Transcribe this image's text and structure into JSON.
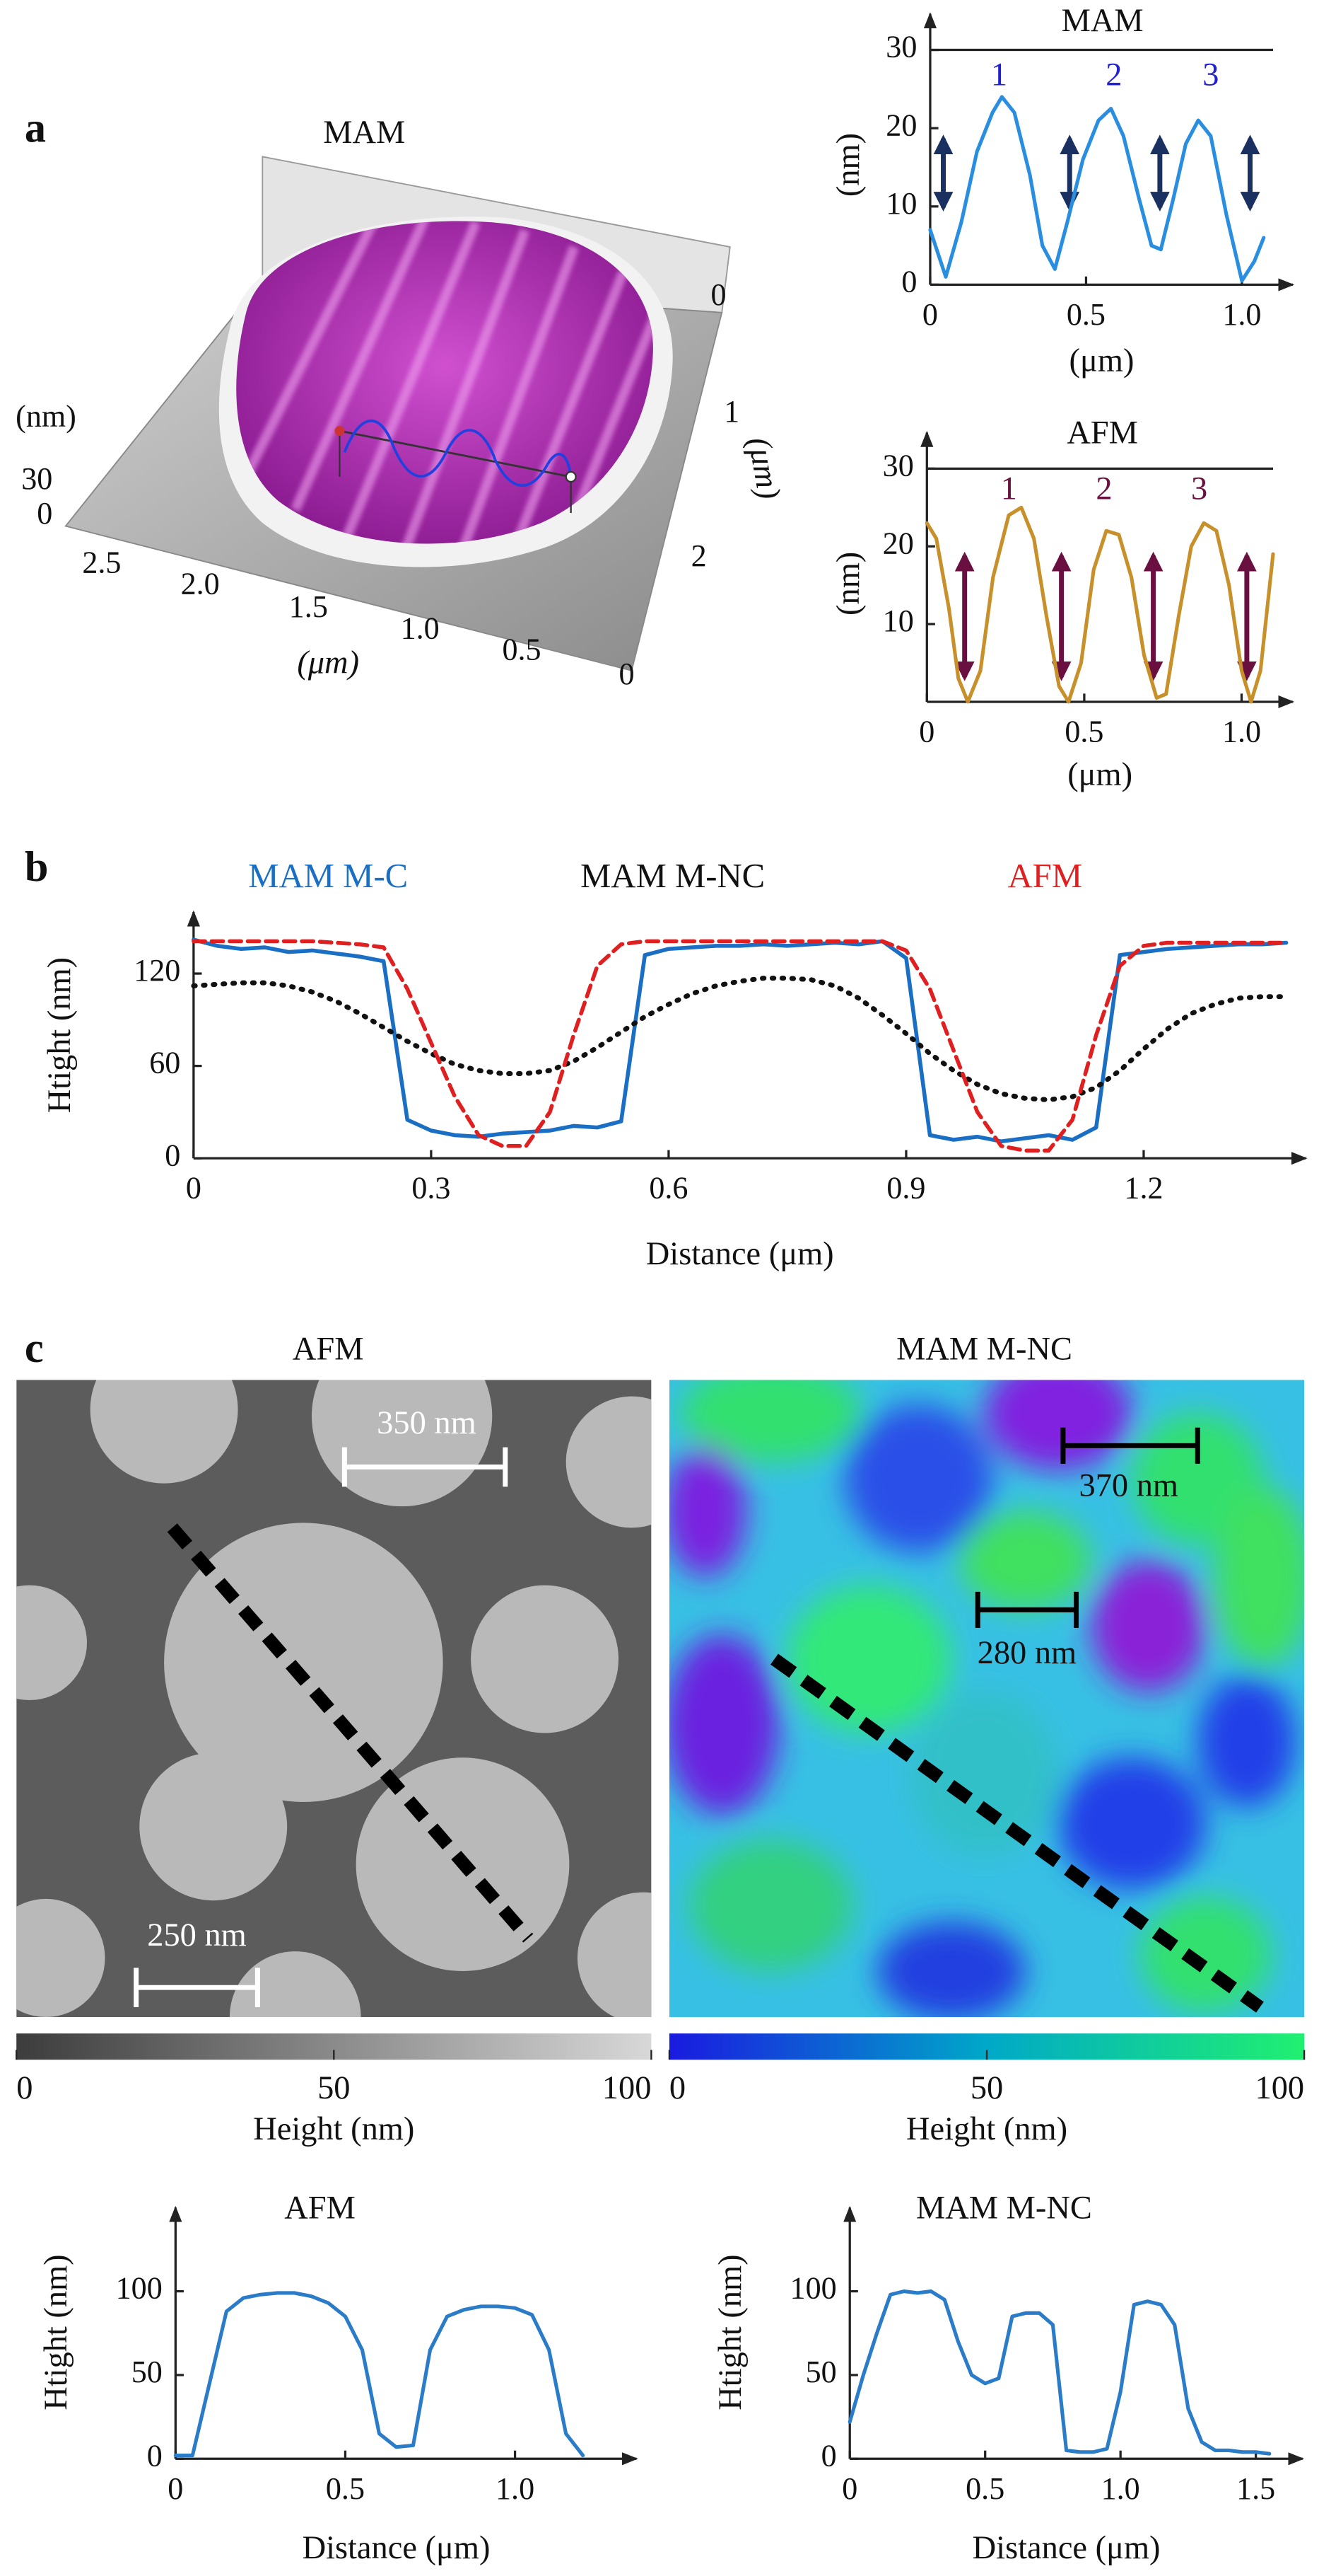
{
  "chart_data": [
    {
      "type": "surface",
      "panel": "a",
      "title": "MAM",
      "zlabel": "(nm)",
      "zticks": [
        30,
        0
      ],
      "xticks": [
        2.5,
        {
          "value": 2,
          "label": "2.0"
        },
        1.5,
        {
          "value": 1,
          "label": "1.0"
        },
        0.5,
        0
      ],
      "xlabel": "(μm)",
      "yticks": [
        0,
        1,
        2
      ],
      "ylabel": "(μm)"
    },
    {
      "type": "line",
      "title": "MAM",
      "ylabel": "(nm)",
      "xlabel": "(μm)",
      "x": [
        0,
        0.05,
        0.1,
        0.15,
        0.2,
        0.23,
        0.27,
        0.32,
        0.36,
        0.4,
        0.44,
        0.49,
        0.54,
        0.58,
        0.62,
        0.67,
        0.71,
        0.74,
        0.78,
        0.82,
        0.86,
        0.9,
        0.95,
        1.0,
        1.04,
        1.07
      ],
      "series": [
        {
          "color": "#2a8ee0",
          "values": [
            7,
            1,
            8,
            17,
            22,
            24,
            22,
            14,
            5,
            2,
            8,
            16,
            21,
            22.5,
            19,
            11,
            5,
            4.5,
            11,
            18,
            21,
            19,
            9,
            0.5,
            3,
            6
          ]
        }
      ],
      "annotations": [
        "1",
        "2",
        "3"
      ],
      "annotation_color": "#2020d0",
      "xlim": [
        0,
        1.1
      ],
      "xticks": [
        0,
        0.5,
        {
          "value": 1,
          "label": "1.0"
        }
      ],
      "ylim": [
        0,
        30
      ],
      "yticks": [
        0,
        10,
        20,
        30
      ]
    },
    {
      "type": "line",
      "title": "AFM",
      "ylabel": "(nm)",
      "xlabel": "(μm)",
      "x": [
        0,
        0.03,
        0.07,
        0.1,
        0.13,
        0.17,
        0.21,
        0.26,
        0.3,
        0.34,
        0.38,
        0.42,
        0.45,
        0.49,
        0.53,
        0.57,
        0.61,
        0.65,
        0.69,
        0.73,
        0.76,
        0.8,
        0.84,
        0.88,
        0.92,
        0.96,
        1.0,
        1.03,
        1.06,
        1.1
      ],
      "series": [
        {
          "color": "#c8902a",
          "values": [
            23,
            21,
            12,
            3,
            0,
            4,
            16,
            24,
            25,
            21,
            11,
            2,
            0,
            5,
            17,
            22,
            21.5,
            16,
            6,
            0.5,
            1,
            11,
            20,
            23,
            22,
            15,
            4,
            0,
            4,
            19
          ]
        }
      ],
      "annotations": [
        "1",
        "2",
        "3"
      ],
      "annotation_color": "#6a1040",
      "xlim": [
        0,
        1.1
      ],
      "xticks": [
        0,
        0.5,
        {
          "value": 1,
          "label": "1.0"
        }
      ],
      "ylim": [
        0,
        30
      ],
      "yticks": [
        10,
        20,
        30
      ]
    },
    {
      "type": "line",
      "panel": "b",
      "ylabel": "Htight (nm)",
      "xlabel": "Distance (μm)",
      "x": [
        0,
        0.03,
        0.06,
        0.09,
        0.12,
        0.15,
        0.18,
        0.21,
        0.24,
        0.27,
        0.3,
        0.33,
        0.36,
        0.39,
        0.42,
        0.45,
        0.48,
        0.51,
        0.54,
        0.57,
        0.6,
        0.63,
        0.66,
        0.69,
        0.72,
        0.75,
        0.78,
        0.81,
        0.84,
        0.87,
        0.9,
        0.93,
        0.96,
        0.99,
        1.02,
        1.05,
        1.08,
        1.11,
        1.14,
        1.17,
        1.2,
        1.23,
        1.26,
        1.29,
        1.32,
        1.35,
        1.38
      ],
      "series": [
        {
          "name": "MAM M-C",
          "color": "#1a6fc4",
          "dash": "solid",
          "values": [
            142,
            138,
            136,
            137,
            134,
            135,
            133,
            131,
            128,
            25,
            18,
            15,
            14,
            16,
            17,
            18,
            21,
            20,
            24,
            132,
            136,
            137,
            138,
            138,
            139,
            138,
            139,
            140,
            139,
            141,
            130,
            15,
            12,
            14,
            11,
            13,
            15,
            12,
            20,
            132,
            134,
            136,
            137,
            138,
            139,
            139,
            140
          ]
        },
        {
          "name": "MAM M-NC",
          "color": "#111111",
          "dash": "dotted",
          "values": [
            112,
            113,
            114,
            114,
            112,
            108,
            102,
            94,
            85,
            76,
            68,
            61,
            57,
            55,
            55,
            57,
            63,
            72,
            82,
            92,
            100,
            107,
            112,
            115,
            117,
            117,
            116,
            112,
            104,
            93,
            81,
            68,
            57,
            48,
            42,
            39,
            38,
            40,
            46,
            57,
            71,
            84,
            94,
            100,
            104,
            105,
            105
          ]
        },
        {
          "name": "AFM",
          "color": "#e02020",
          "dash": "dashed",
          "values": [
            141,
            141,
            141,
            141,
            141,
            141,
            140,
            139,
            137,
            110,
            75,
            40,
            15,
            8,
            8,
            30,
            80,
            125,
            139,
            141,
            141,
            141,
            141,
            141,
            141,
            141,
            141,
            141,
            141,
            141,
            135,
            110,
            70,
            30,
            8,
            5,
            5,
            25,
            80,
            125,
            138,
            140,
            140,
            140,
            140,
            140,
            140
          ]
        }
      ],
      "xlim": [
        0,
        1.38
      ],
      "xticks": [
        0,
        0.3,
        0.6,
        0.9,
        1.2
      ],
      "ylim": [
        0,
        160
      ],
      "yticks": [
        0,
        60,
        120
      ]
    },
    {
      "type": "image",
      "panel": "c",
      "title": "AFM",
      "scalebars": [
        "350 nm",
        "250 nm"
      ],
      "scalebar_color": "#ffffff",
      "colorbar": {
        "colors": [
          "#3c3c3c",
          "#d8d8d8"
        ],
        "lim": [
          0,
          100
        ],
        "ticks": [
          0,
          50,
          100
        ],
        "label": "Height (nm)"
      }
    },
    {
      "type": "image",
      "title": "MAM M-NC",
      "scalebars": [
        "370 nm",
        "280 nm"
      ],
      "scalebar_color": "#111111",
      "colorbar": {
        "colors": [
          "#1a1ae0",
          "#00a8c8",
          "#20f070"
        ],
        "lim": [
          0,
          100
        ],
        "ticks": [
          0,
          50,
          100
        ],
        "label": "Height (nm)"
      }
    },
    {
      "type": "line",
      "title": "AFM",
      "ylabel": "Htight (nm)",
      "xlabel": "Distance (μm)",
      "x": [
        0,
        0.05,
        0.1,
        0.15,
        0.2,
        0.25,
        0.3,
        0.35,
        0.4,
        0.45,
        0.5,
        0.55,
        0.6,
        0.65,
        0.7,
        0.75,
        0.8,
        0.85,
        0.9,
        0.95,
        1.0,
        1.05,
        1.1,
        1.15,
        1.2
      ],
      "series": [
        {
          "color": "#2a7cc8",
          "values": [
            2,
            2,
            45,
            88,
            96,
            98,
            99,
            99,
            97,
            93,
            85,
            65,
            15,
            7,
            8,
            65,
            85,
            89,
            91,
            91,
            90,
            86,
            65,
            15,
            2
          ]
        }
      ],
      "xlim": [
        0,
        1.3
      ],
      "xticks": [
        0,
        0.5,
        {
          "value": 1,
          "label": "1.0"
        }
      ],
      "ylim": [
        0,
        150
      ],
      "yticks": [
        0,
        50,
        100
      ]
    },
    {
      "type": "line",
      "title": "MAM M-NC",
      "ylabel": "Htight (nm)",
      "xlabel": "Distance (μm)",
      "x": [
        0,
        0.05,
        0.1,
        0.15,
        0.2,
        0.25,
        0.3,
        0.35,
        0.4,
        0.45,
        0.5,
        0.55,
        0.6,
        0.65,
        0.7,
        0.75,
        0.8,
        0.85,
        0.9,
        0.95,
        1.0,
        1.05,
        1.1,
        1.15,
        1.2,
        1.25,
        1.3,
        1.35,
        1.4,
        1.45,
        1.5,
        1.55
      ],
      "series": [
        {
          "color": "#2a7cc8",
          "values": [
            22,
            50,
            75,
            98,
            100,
            99,
            100,
            95,
            70,
            50,
            45,
            48,
            85,
            87,
            87,
            80,
            5,
            4,
            4,
            6,
            40,
            92,
            94,
            92,
            80,
            30,
            10,
            5,
            5,
            4,
            4,
            3
          ]
        }
      ],
      "xlim": [
        0,
        1.6
      ],
      "xticks": [
        0,
        0.5,
        {
          "value": 1,
          "label": "1.0"
        },
        1.5
      ],
      "ylim": [
        0,
        150
      ],
      "yticks": [
        0,
        50,
        100
      ]
    }
  ]
}
